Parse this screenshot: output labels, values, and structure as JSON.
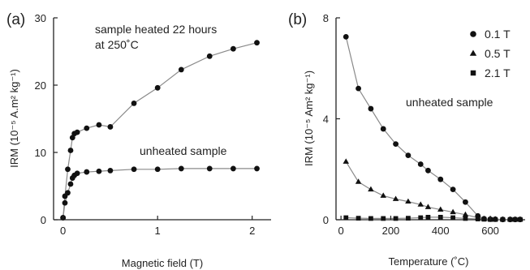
{
  "chart_data": [
    {
      "panel_label": "(a)",
      "type": "line",
      "xlabel": "Magnetic field (T)",
      "ylabel": "IRM (10⁻⁵ A.m² kg⁻¹)",
      "xlim": [
        -0.1,
        2.2
      ],
      "ylim": [
        0,
        30
      ],
      "xticks": [
        0,
        1,
        2
      ],
      "yticks": [
        0,
        10,
        20,
        30
      ],
      "marker_color": "#111111",
      "line_color": "#8a8a8a",
      "series": [
        {
          "name": "sample heated 22 hours at 250˚C",
          "label_lines": [
            "sample heated 22 hours",
            "at 250˚C"
          ],
          "marker": "circle",
          "x": [
            0.0,
            0.02,
            0.05,
            0.08,
            0.1,
            0.12,
            0.15,
            0.25,
            0.38,
            0.5,
            0.75,
            1.0,
            1.25,
            1.55,
            1.8,
            2.05
          ],
          "y": [
            0.3,
            3.5,
            7.5,
            10.3,
            12.2,
            12.8,
            13.0,
            13.6,
            14.1,
            13.8,
            17.3,
            19.6,
            22.3,
            24.3,
            25.4,
            26.3
          ]
        },
        {
          "name": "unheated sample",
          "label_lines": [
            "unheated sample"
          ],
          "marker": "circle",
          "x": [
            0.0,
            0.02,
            0.05,
            0.08,
            0.1,
            0.12,
            0.15,
            0.25,
            0.38,
            0.5,
            0.75,
            1.0,
            1.25,
            1.55,
            1.8,
            2.05
          ],
          "y": [
            0.3,
            2.5,
            4.0,
            5.3,
            6.2,
            6.6,
            6.9,
            7.1,
            7.2,
            7.3,
            7.5,
            7.5,
            7.6,
            7.6,
            7.6,
            7.6
          ]
        }
      ]
    },
    {
      "panel_label": "(b)",
      "type": "line",
      "xlabel": "Temperature (˚C)",
      "ylabel": "IRM (10⁻⁵ Am² kg⁻¹)",
      "annotation": "unheated sample",
      "xlim": [
        -20,
        740
      ],
      "ylim": [
        0,
        8
      ],
      "xticks": [
        0,
        200,
        400,
        600
      ],
      "yticks": [
        0,
        4,
        8
      ],
      "legend_position": "top-right",
      "marker_color": "#111111",
      "line_color": "#8a8a8a",
      "series": [
        {
          "name": "0.1 T",
          "marker": "circle",
          "x": [
            20,
            70,
            120,
            170,
            220,
            270,
            320,
            350,
            400,
            450,
            500,
            550,
            575,
            600,
            620,
            650,
            680,
            700,
            720
          ],
          "y": [
            7.25,
            5.2,
            4.4,
            3.6,
            3.0,
            2.55,
            2.2,
            1.95,
            1.6,
            1.2,
            0.7,
            0.15,
            0.04,
            0.02,
            0.02,
            0.01,
            0.01,
            0.01,
            0.01
          ]
        },
        {
          "name": "0.5 T",
          "marker": "triangle",
          "x": [
            20,
            70,
            120,
            170,
            220,
            270,
            320,
            350,
            400,
            450,
            500,
            550,
            575,
            600,
            620,
            650,
            680,
            700,
            720
          ],
          "y": [
            2.3,
            1.5,
            1.2,
            0.95,
            0.82,
            0.72,
            0.6,
            0.5,
            0.4,
            0.3,
            0.2,
            0.08,
            0.03,
            0.02,
            0.02,
            0.01,
            0.01,
            0.01,
            0.01
          ]
        },
        {
          "name": "2.1 T",
          "marker": "square",
          "x": [
            20,
            70,
            120,
            170,
            220,
            270,
            320,
            350,
            400,
            450,
            500,
            550,
            575,
            600,
            620,
            650,
            680,
            700,
            720
          ],
          "y": [
            0.08,
            0.06,
            0.05,
            0.05,
            0.05,
            0.06,
            0.08,
            0.1,
            0.1,
            0.08,
            0.05,
            0.03,
            0.02,
            0.01,
            0.01,
            0.01,
            0.01,
            0.01,
            0.01
          ]
        }
      ]
    }
  ]
}
